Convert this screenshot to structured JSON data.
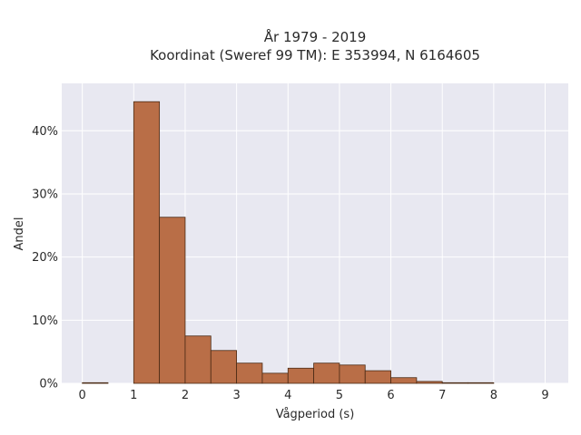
{
  "chart_data": {
    "type": "bar",
    "title_line1": "År 1979 - 2019",
    "title_line2": "Koordinat (Sweref 99 TM): E 353994, N 6164605",
    "xlabel": "Vågperiod (s)",
    "ylabel": "Andel",
    "xlim": [
      -0.4,
      9.45
    ],
    "ylim": [
      0,
      47.5
    ],
    "x_ticks": [
      0,
      1,
      2,
      3,
      4,
      5,
      6,
      7,
      8,
      9
    ],
    "x_tick_labels": [
      "0",
      "1",
      "2",
      "3",
      "4",
      "5",
      "6",
      "7",
      "8",
      "9"
    ],
    "y_ticks": [
      0,
      10,
      20,
      30,
      40
    ],
    "y_tick_labels": [
      "0%",
      "10%",
      "20%",
      "30%",
      "40%"
    ],
    "bin_width": 0.5,
    "bins": [
      {
        "start": 0.0,
        "end": 0.5,
        "value": 0.1
      },
      {
        "start": 0.5,
        "end": 1.0,
        "value": 0.0
      },
      {
        "start": 1.0,
        "end": 1.5,
        "value": 44.6
      },
      {
        "start": 1.5,
        "end": 2.0,
        "value": 26.3
      },
      {
        "start": 2.0,
        "end": 2.5,
        "value": 7.5
      },
      {
        "start": 2.5,
        "end": 3.0,
        "value": 5.2
      },
      {
        "start": 3.0,
        "end": 3.5,
        "value": 3.2
      },
      {
        "start": 3.5,
        "end": 4.0,
        "value": 1.6
      },
      {
        "start": 4.0,
        "end": 4.5,
        "value": 2.4
      },
      {
        "start": 4.5,
        "end": 5.0,
        "value": 3.2
      },
      {
        "start": 5.0,
        "end": 5.5,
        "value": 2.9
      },
      {
        "start": 5.5,
        "end": 6.0,
        "value": 2.0
      },
      {
        "start": 6.0,
        "end": 6.5,
        "value": 0.9
      },
      {
        "start": 6.5,
        "end": 7.0,
        "value": 0.3
      },
      {
        "start": 7.0,
        "end": 7.5,
        "value": 0.1
      },
      {
        "start": 7.5,
        "end": 8.0,
        "value": 0.1
      }
    ],
    "grid": true,
    "colors": {
      "bar_fill": "#b96e47",
      "bar_stroke": "#4a2a14",
      "plot_background": "#e8e8f1",
      "grid": "#ffffff"
    }
  }
}
